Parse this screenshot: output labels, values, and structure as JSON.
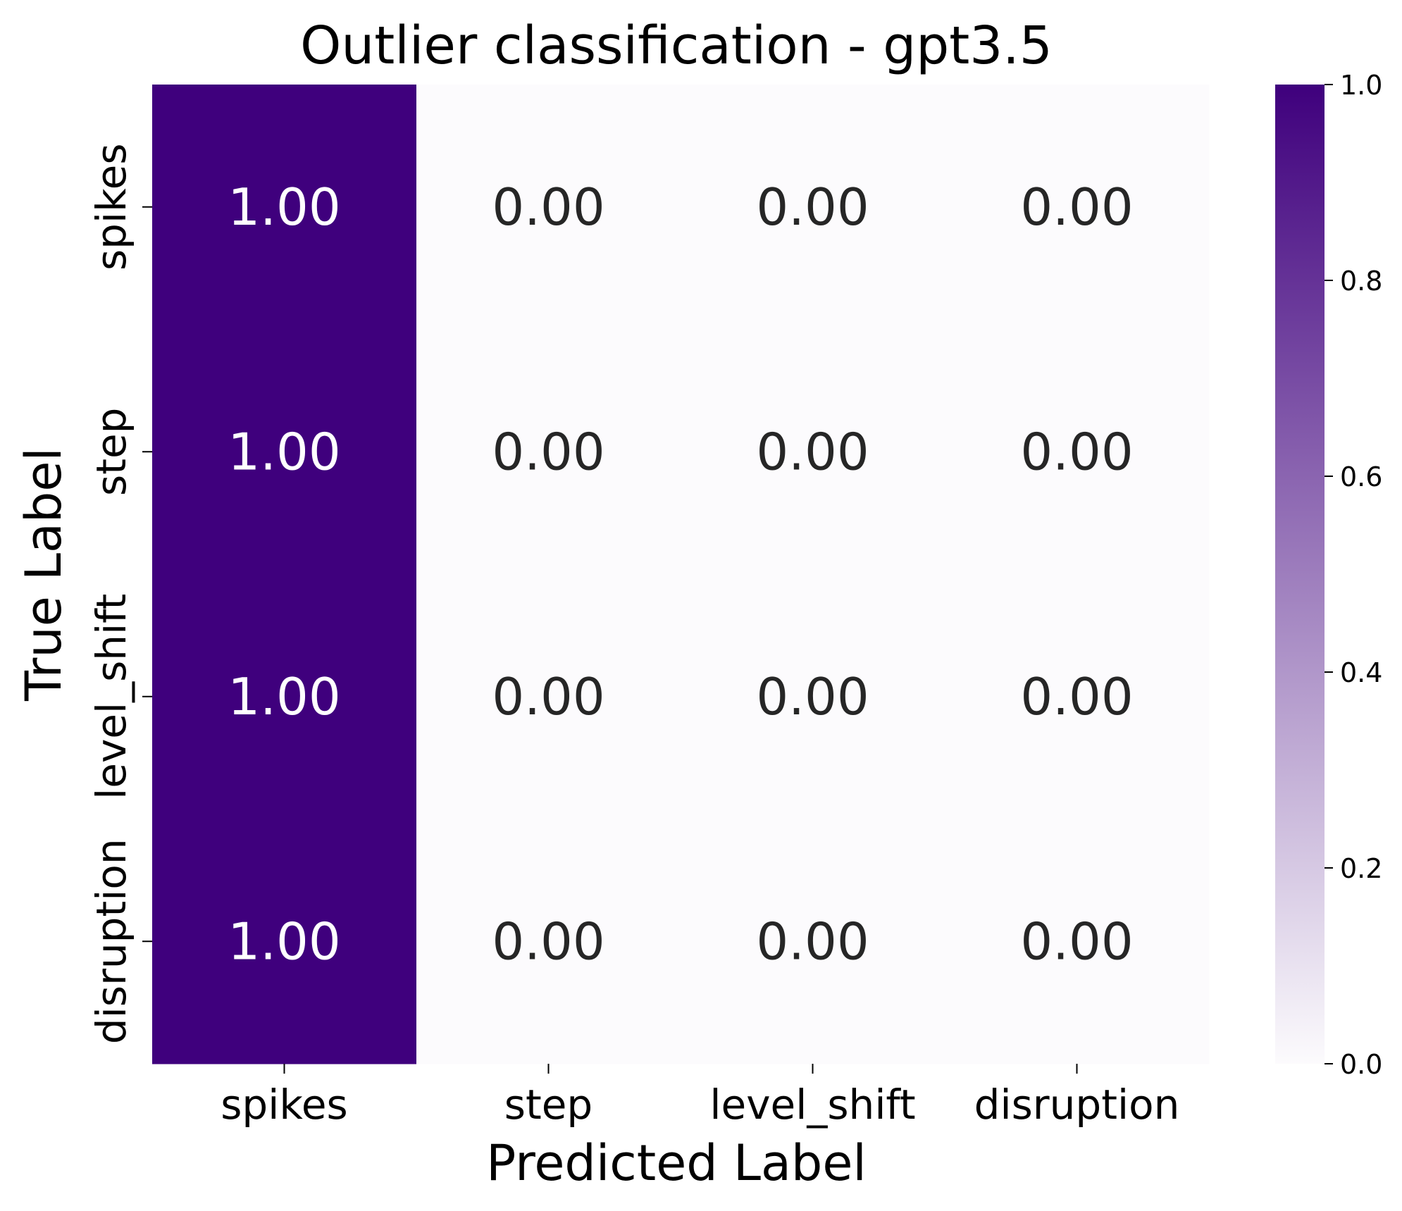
{
  "chart_data": {
    "type": "heatmap",
    "title": "Outlier classification - gpt3.5",
    "xlabel": "Predicted Label",
    "ylabel": "True Label",
    "x_categories": [
      "spikes",
      "step",
      "level_shift",
      "disruption"
    ],
    "y_categories": [
      "spikes",
      "step",
      "level_shift",
      "disruption"
    ],
    "values": [
      [
        1.0,
        0.0,
        0.0,
        0.0
      ],
      [
        1.0,
        0.0,
        0.0,
        0.0
      ],
      [
        1.0,
        0.0,
        0.0,
        0.0
      ],
      [
        1.0,
        0.0,
        0.0,
        0.0
      ]
    ],
    "value_format": "2-decimals",
    "colormap": "Purples",
    "color_low": "#fcfbfd",
    "color_high": "#3f007d",
    "colorbar": {
      "range": [
        0,
        1
      ],
      "ticks": [
        "0.0",
        "0.2",
        "0.4",
        "0.6",
        "0.8",
        "1.0"
      ]
    }
  }
}
